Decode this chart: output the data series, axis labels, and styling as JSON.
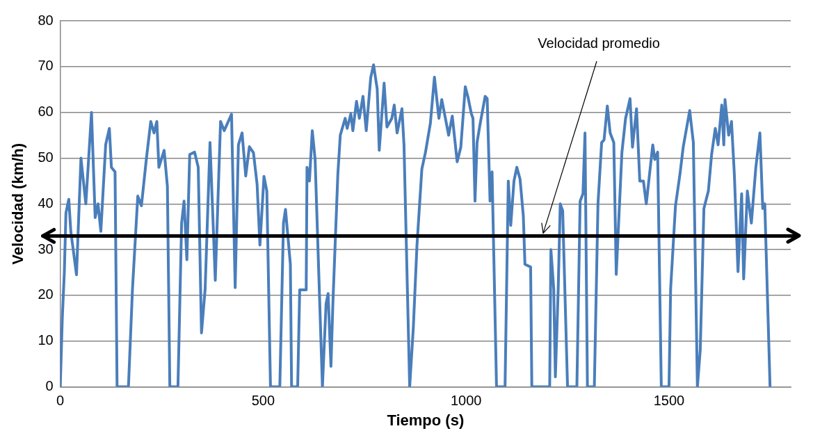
{
  "chart_data": {
    "type": "line",
    "xlabel": "Tiempo (s)",
    "ylabel": "Velocidad (km/h)",
    "xlim": [
      0,
      1800
    ],
    "xticks": [
      0,
      500,
      1000,
      1500
    ],
    "ylim": [
      0,
      80
    ],
    "yticks": [
      0,
      10,
      20,
      30,
      40,
      50,
      60,
      70,
      80
    ],
    "grid": "y",
    "legend": false,
    "marker": "none",
    "line_style": "solid",
    "x": [
      0,
      5,
      10,
      14,
      21,
      26,
      40,
      51,
      63,
      77,
      86,
      93,
      100,
      112,
      121,
      126,
      135,
      140,
      168,
      178,
      191,
      200,
      212,
      223,
      231,
      238,
      243,
      256,
      264,
      270,
      290,
      299,
      305,
      312,
      319,
      331,
      340,
      348,
      357,
      369,
      382,
      395,
      404,
      422,
      431,
      439,
      448,
      457,
      466,
      476,
      485,
      492,
      502,
      509,
      518,
      541,
      550,
      555,
      567,
      570,
      585,
      590,
      606,
      608,
      614,
      621,
      628,
      646,
      655,
      660,
      667,
      672,
      684,
      690,
      702,
      707,
      716,
      721,
      730,
      737,
      746,
      754,
      765,
      772,
      781,
      786,
      798,
      805,
      817,
      823,
      830,
      842,
      847,
      861,
      870,
      879,
      891,
      900,
      912,
      922,
      933,
      940,
      949,
      957,
      966,
      978,
      987,
      998,
      1005,
      1013,
      1017,
      1022,
      1027,
      1034,
      1047,
      1052,
      1059,
      1064,
      1075,
      1096,
      1104,
      1110,
      1118,
      1125,
      1133,
      1141,
      1145,
      1159,
      1162,
      1206,
      1209,
      1216,
      1220,
      1227,
      1232,
      1238,
      1250,
      1273,
      1281,
      1288,
      1293,
      1299,
      1316,
      1325,
      1334,
      1340,
      1348,
      1355,
      1364,
      1370,
      1384,
      1393,
      1404,
      1410,
      1420,
      1428,
      1437,
      1444,
      1460,
      1465,
      1472,
      1481,
      1500,
      1504,
      1516,
      1527,
      1535,
      1551,
      1560,
      1570,
      1577,
      1586,
      1597,
      1605,
      1614,
      1621,
      1630,
      1635,
      1638,
      1647,
      1654,
      1661,
      1670,
      1679,
      1684,
      1693,
      1703,
      1714,
      1724,
      1731,
      1736,
      1749
    ],
    "series": [
      {
        "color": "#4a7ebb",
        "values": [
          0,
          15,
          25,
          38,
          41,
          34,
          24.5,
          50,
          40,
          60,
          37,
          40,
          34,
          53,
          56.5,
          48,
          47,
          0,
          0,
          21.5,
          41.7,
          39.6,
          49.7,
          58,
          55.5,
          58,
          48,
          51.7,
          43.8,
          0,
          0,
          35.8,
          40.6,
          27.8,
          50.8,
          51.3,
          48,
          11.8,
          21.4,
          53.4,
          23.3,
          58,
          56,
          59.6,
          21.7,
          52.9,
          55.5,
          46.1,
          52.5,
          51.2,
          44.3,
          31,
          46,
          42.8,
          0,
          0,
          35.8,
          38.8,
          26.8,
          0,
          0,
          21.2,
          21.2,
          48,
          45,
          56,
          49.7,
          0,
          18.2,
          20.4,
          4.5,
          18.8,
          46.5,
          55,
          58.7,
          56.5,
          59.7,
          56,
          62.4,
          58.7,
          63.5,
          56,
          67.6,
          70.4,
          65.1,
          51.7,
          66.4,
          56.8,
          58.7,
          61.6,
          55.5,
          60.8,
          52.9,
          0,
          13,
          31,
          47.6,
          51.3,
          57.6,
          67.7,
          58.7,
          62.8,
          58.7,
          55,
          59.2,
          49.2,
          52.4,
          65.6,
          63.2,
          59.7,
          58.7,
          40.6,
          53.4,
          57.2,
          63.5,
          63,
          40.6,
          47,
          0,
          0,
          45,
          35.3,
          45,
          48,
          45.4,
          37.4,
          26.8,
          26.2,
          0,
          0,
          30,
          21.4,
          2.2,
          21.4,
          40,
          38.5,
          0,
          0,
          40.6,
          42.2,
          55.5,
          0,
          0,
          40,
          53.4,
          54,
          61.4,
          55.5,
          53.4,
          24.6,
          51.3,
          58.7,
          63,
          52.4,
          60.8,
          45,
          45,
          40,
          52.9,
          49.7,
          51.3,
          0,
          0,
          21.4,
          39.6,
          46.5,
          52.4,
          60.4,
          53.4,
          0,
          8.1,
          39,
          42.8,
          50.8,
          56.5,
          52.9,
          61.6,
          52.9,
          62.8,
          55,
          58,
          46.5,
          25.2,
          42.2,
          23.6,
          42.8,
          35.8,
          48,
          55.5,
          39,
          40,
          0
        ]
      }
    ],
    "ref_lines": [
      {
        "axis": "y",
        "value": 33,
        "color": "#000000"
      }
    ],
    "annotations": [
      {
        "text": "Velocidad promedio",
        "x": 1190,
        "y": 33
      }
    ]
  }
}
